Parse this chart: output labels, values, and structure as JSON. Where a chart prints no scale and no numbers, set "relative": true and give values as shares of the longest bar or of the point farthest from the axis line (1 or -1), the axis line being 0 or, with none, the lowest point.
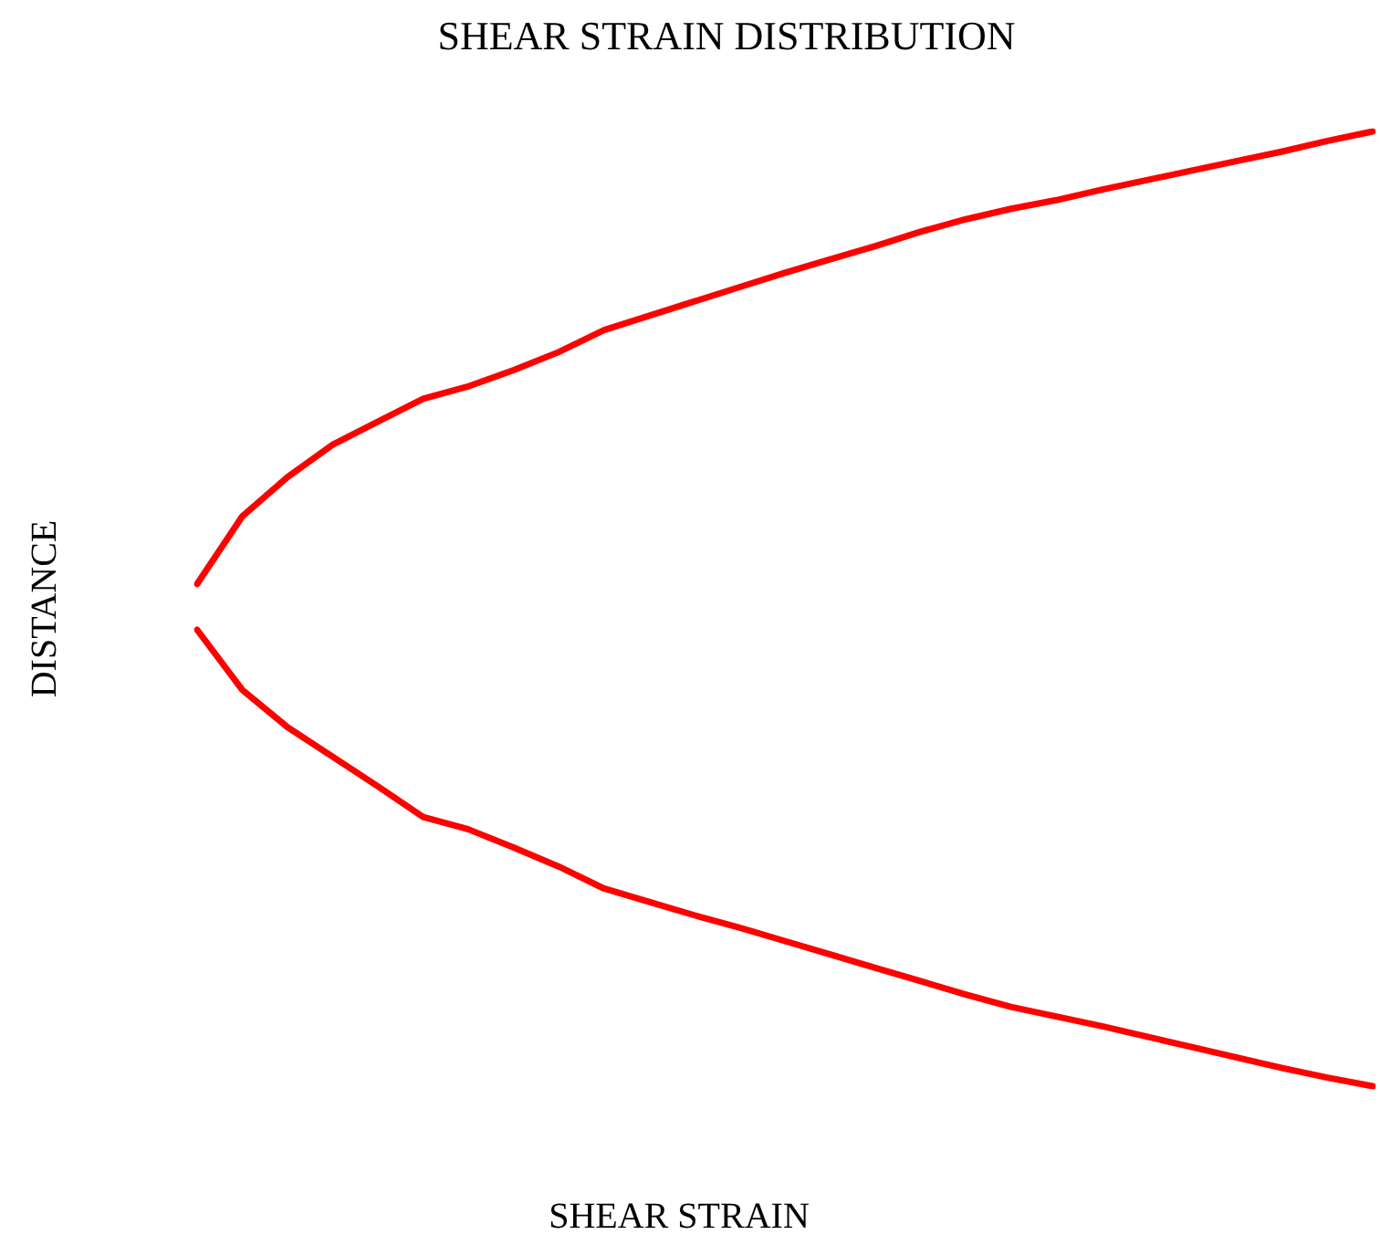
{
  "chart_data": {
    "type": "line",
    "title": "SHEAR STRAIN DISTRIBUTION",
    "xlabel": "SHEAR STRAIN",
    "ylabel": "DISTANCE",
    "relative": true,
    "legend": false,
    "marker": "none",
    "line_style": "solid",
    "categories": [
      null,
      null,
      null,
      null,
      null,
      null,
      null,
      null,
      null,
      null,
      null,
      null,
      null,
      null,
      null,
      null,
      null,
      null,
      null,
      null,
      null,
      null,
      null,
      null,
      null,
      null,
      null
    ],
    "series": [
      {
        "color": "#ff0000",
        "values": [
          0.526,
          0.597,
          0.638,
          0.672,
          0.696,
          0.72,
          0.733,
          0.75,
          0.769,
          0.792,
          0.807,
          0.822,
          0.837,
          0.852,
          0.866,
          0.88,
          0.895,
          0.908,
          0.919,
          0.928,
          0.939,
          0.949,
          0.959,
          0.969,
          0.979,
          0.99,
          1
        ]
      },
      {
        "color": "#ff0000",
        "values": [
          0.478,
          0.415,
          0.376,
          0.345,
          0.314,
          0.282,
          0.269,
          0.25,
          0.23,
          0.207,
          0.193,
          0.179,
          0.166,
          0.152,
          0.138,
          0.124,
          0.11,
          0.096,
          0.083,
          0.073,
          0.063,
          0.052,
          0.041,
          0.03,
          0.019,
          0.009,
          0
        ]
      }
    ]
  }
}
